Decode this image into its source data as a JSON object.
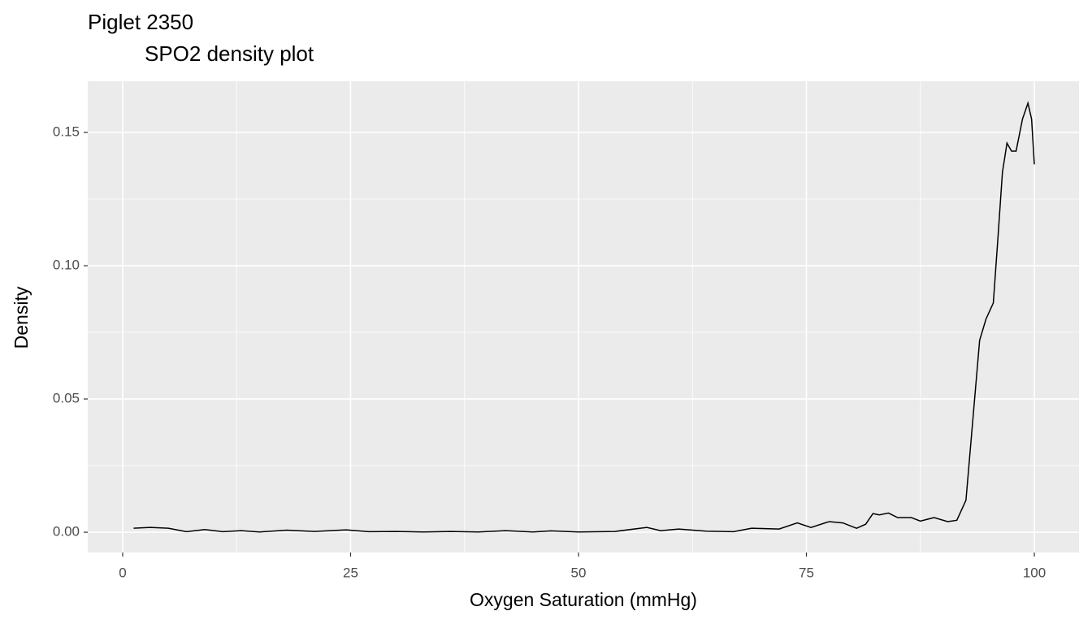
{
  "chart_data": {
    "type": "line",
    "title": "Piglet 2350",
    "subtitle": "SPO2 density plot",
    "x_label": "Oxygen Saturation (mmHg)",
    "y_label": "Density",
    "xlim": [
      -3.83,
      104.9
    ],
    "ylim": [
      -0.0076,
      0.1692
    ],
    "xticks": [
      0,
      25,
      50,
      75,
      100
    ],
    "yticks": [
      {
        "value": 0,
        "label": "0.00"
      },
      {
        "value": 0.05,
        "label": "0.05"
      },
      {
        "value": 0.1,
        "label": "0.10"
      },
      {
        "value": 0.15,
        "label": "0.15"
      }
    ],
    "x_minor_ticks": [
      12.5,
      37.5,
      62.5,
      87.5
    ],
    "y_minor_ticks": [
      0.025,
      0.075,
      0.125
    ],
    "grid": true,
    "panel_color": "#ebebeb",
    "grid_color": "#ffffff",
    "series": [
      {
        "color": "#000000",
        "x": [
          1.2,
          3,
          5,
          7,
          9,
          11,
          13,
          15,
          18,
          21,
          24.5,
          27,
          30,
          33,
          36,
          39,
          42,
          45,
          47,
          50,
          54,
          57.5,
          59,
          61,
          64,
          67,
          69,
          72,
          74,
          75.5,
          77.5,
          79,
          80.5,
          81.5,
          82.3,
          83,
          84,
          85,
          86.5,
          87.5,
          89,
          90.5,
          91.5,
          92.5,
          93.2,
          94,
          94.7,
          95.5,
          96,
          96.5,
          97,
          97.5,
          98,
          98.7,
          99.3,
          99.7,
          100
        ],
        "values": [
          0.0015,
          0.0018,
          0.0015,
          0.0002,
          0.001,
          0.0002,
          0.0006,
          0.0001,
          0.0008,
          0.0003,
          0.0009,
          0.0002,
          0.0003,
          0.0001,
          0.0003,
          0.0001,
          0.0006,
          0.0001,
          0.0005,
          0.0001,
          0.0003,
          0.0018,
          0.0006,
          0.0012,
          0.0004,
          0.0002,
          0.0015,
          0.0012,
          0.0035,
          0.0018,
          0.004,
          0.0035,
          0.0015,
          0.003,
          0.007,
          0.0065,
          0.0072,
          0.0055,
          0.0055,
          0.0042,
          0.0055,
          0.004,
          0.0045,
          0.012,
          0.04,
          0.072,
          0.08,
          0.086,
          0.11,
          0.135,
          0.146,
          0.143,
          0.143,
          0.155,
          0.161,
          0.155,
          0.138
        ]
      }
    ]
  }
}
